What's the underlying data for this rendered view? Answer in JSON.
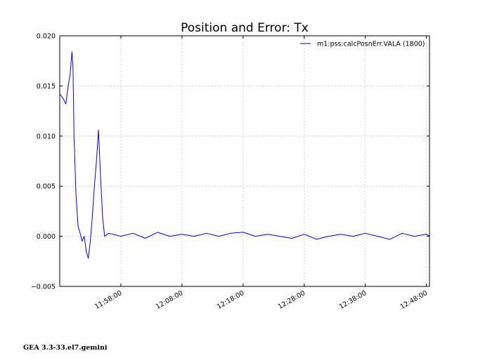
{
  "chart_data": {
    "type": "line",
    "title": "Position and Error:  Tx",
    "xlabel": "",
    "ylabel": "",
    "footer": "GEA 3.3-33.el7.gemini",
    "x_range": [
      "11:48:00",
      "12:48:30"
    ],
    "ylim": [
      -0.005,
      0.02
    ],
    "y_ticks": [
      "−0.005",
      "0.000",
      "0.005",
      "0.010",
      "0.015",
      "0.020"
    ],
    "y_tick_values": [
      -0.005,
      0.0,
      0.005,
      0.01,
      0.015,
      0.02
    ],
    "x_ticks": [
      "11:58:00",
      "12:08:00",
      "12:18:00",
      "12:28:00",
      "12:38:00",
      "12:48:00"
    ],
    "grid": true,
    "legend_position": "top-right",
    "color": "#0000ff",
    "series": [
      {
        "name": "m1:pss:calcPosnErr.VALA (1800)",
        "points": [
          [
            "11:48:00",
            0.0142
          ],
          [
            "11:48:30",
            0.0138
          ],
          [
            "11:49:00",
            0.0132
          ],
          [
            "11:49:20",
            0.0148
          ],
          [
            "11:49:40",
            0.016
          ],
          [
            "11:50:00",
            0.0184
          ],
          [
            "11:50:10",
            0.017
          ],
          [
            "11:50:20",
            0.01
          ],
          [
            "11:50:40",
            0.004
          ],
          [
            "11:51:00",
            0.001
          ],
          [
            "11:51:20",
            0.0003
          ],
          [
            "11:51:40",
            -0.0005
          ],
          [
            "11:52:00",
            0.0
          ],
          [
            "11:52:20",
            -0.0015
          ],
          [
            "11:52:40",
            -0.0022
          ],
          [
            "11:53:00",
            -0.0005
          ],
          [
            "11:53:20",
            0.002
          ],
          [
            "11:53:40",
            0.005
          ],
          [
            "11:54:00",
            0.0075
          ],
          [
            "11:54:20",
            0.0106
          ],
          [
            "11:54:40",
            0.006
          ],
          [
            "11:55:00",
            0.002
          ],
          [
            "11:55:20",
            0.0
          ],
          [
            "11:56:00",
            0.0003
          ],
          [
            "11:58:00",
            0.0
          ],
          [
            "12:00:00",
            0.0003
          ],
          [
            "12:02:00",
            -0.0002
          ],
          [
            "12:04:00",
            0.0004
          ],
          [
            "12:06:00",
            0.0
          ],
          [
            "12:08:00",
            0.0002
          ],
          [
            "12:10:00",
            0.0
          ],
          [
            "12:12:00",
            0.0003
          ],
          [
            "12:14:00",
            0.0
          ],
          [
            "12:16:00",
            0.0003
          ],
          [
            "12:18:00",
            0.0004
          ],
          [
            "12:20:00",
            0.0
          ],
          [
            "12:22:00",
            0.0002
          ],
          [
            "12:24:00",
            0.0
          ],
          [
            "12:26:00",
            -0.0002
          ],
          [
            "12:28:00",
            0.0002
          ],
          [
            "12:30:00",
            -0.0003
          ],
          [
            "12:32:00",
            0.0
          ],
          [
            "12:34:00",
            0.0002
          ],
          [
            "12:36:00",
            0.0
          ],
          [
            "12:38:00",
            0.0003
          ],
          [
            "12:40:00",
            0.0
          ],
          [
            "12:42:00",
            -0.0003
          ],
          [
            "12:44:00",
            0.0003
          ],
          [
            "12:46:00",
            0.0
          ],
          [
            "12:48:00",
            0.0002
          ],
          [
            "12:48:30",
            0.0
          ]
        ]
      }
    ]
  }
}
